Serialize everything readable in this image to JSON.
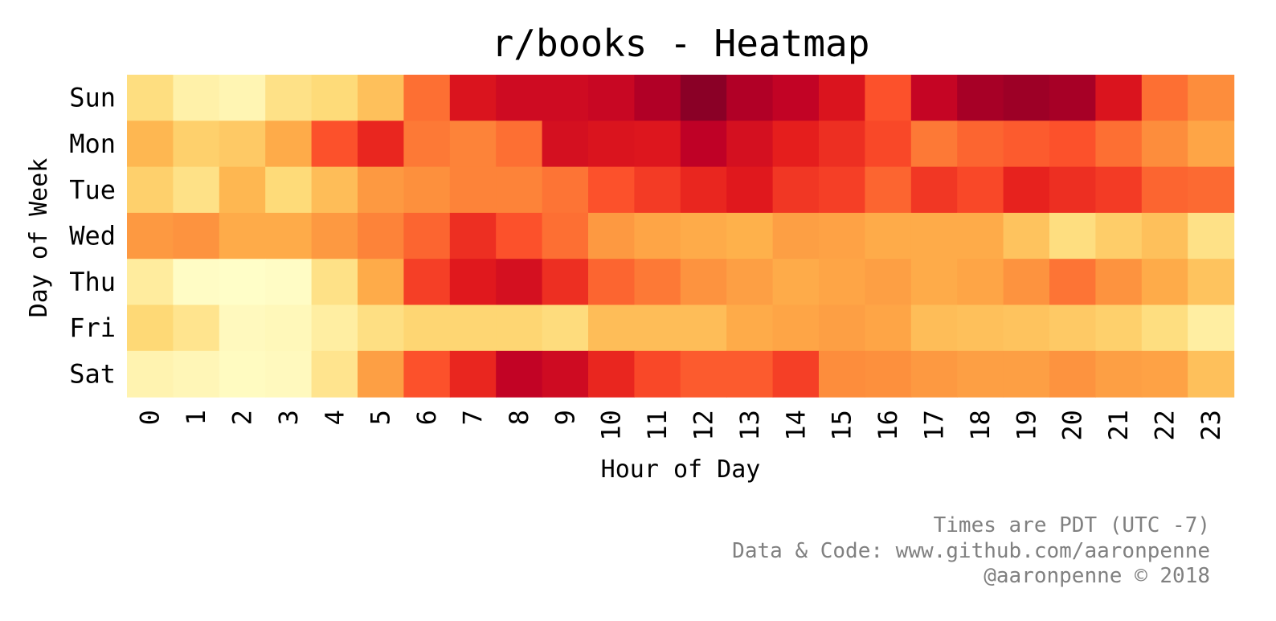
{
  "chart_data": {
    "type": "heatmap",
    "title": "r/books - Heatmap",
    "xlabel": "Hour of Day",
    "ylabel": "Day of Week",
    "x_categories": [
      "0",
      "1",
      "2",
      "3",
      "4",
      "5",
      "6",
      "7",
      "8",
      "9",
      "10",
      "11",
      "12",
      "13",
      "14",
      "15",
      "16",
      "17",
      "18",
      "19",
      "20",
      "21",
      "22",
      "23"
    ],
    "y_categories": [
      "Sun",
      "Mon",
      "Tue",
      "Wed",
      "Thu",
      "Fri",
      "Sat"
    ],
    "colormap": "YlOrRd",
    "value_range": [
      0,
      1
    ],
    "values": [
      [
        0.22,
        0.1,
        0.07,
        0.2,
        0.24,
        0.33,
        0.56,
        0.78,
        0.82,
        0.82,
        0.84,
        0.9,
        0.98,
        0.9,
        0.86,
        0.78,
        0.62,
        0.85,
        0.92,
        0.94,
        0.92,
        0.78,
        0.56,
        0.5
      ],
      [
        0.36,
        0.28,
        0.3,
        0.4,
        0.62,
        0.72,
        0.54,
        0.52,
        0.56,
        0.8,
        0.78,
        0.77,
        0.87,
        0.8,
        0.74,
        0.7,
        0.64,
        0.54,
        0.58,
        0.6,
        0.62,
        0.56,
        0.5,
        0.42
      ],
      [
        0.28,
        0.2,
        0.36,
        0.24,
        0.34,
        0.46,
        0.49,
        0.52,
        0.52,
        0.55,
        0.62,
        0.67,
        0.72,
        0.76,
        0.68,
        0.66,
        0.58,
        0.68,
        0.64,
        0.73,
        0.7,
        0.67,
        0.58,
        0.57
      ],
      [
        0.46,
        0.48,
        0.4,
        0.4,
        0.46,
        0.52,
        0.58,
        0.7,
        0.62,
        0.56,
        0.46,
        0.42,
        0.4,
        0.38,
        0.44,
        0.43,
        0.4,
        0.4,
        0.4,
        0.32,
        0.22,
        0.29,
        0.33,
        0.2
      ],
      [
        0.13,
        0.02,
        0.01,
        0.02,
        0.2,
        0.4,
        0.66,
        0.76,
        0.8,
        0.7,
        0.58,
        0.54,
        0.48,
        0.44,
        0.4,
        0.42,
        0.44,
        0.4,
        0.42,
        0.48,
        0.55,
        0.48,
        0.4,
        0.32
      ],
      [
        0.25,
        0.18,
        0.04,
        0.05,
        0.12,
        0.21,
        0.26,
        0.26,
        0.26,
        0.23,
        0.34,
        0.34,
        0.34,
        0.4,
        0.42,
        0.44,
        0.42,
        0.34,
        0.33,
        0.32,
        0.3,
        0.28,
        0.22,
        0.12
      ],
      [
        0.08,
        0.06,
        0.03,
        0.04,
        0.18,
        0.44,
        0.62,
        0.72,
        0.86,
        0.82,
        0.72,
        0.64,
        0.6,
        0.6,
        0.66,
        0.5,
        0.49,
        0.46,
        0.44,
        0.44,
        0.48,
        0.44,
        0.43,
        0.33
      ]
    ],
    "grid": false,
    "legend": "none"
  },
  "footnote": {
    "line1": "Times are PDT (UTC -7)",
    "line2": "Data & Code: www.github.com/aaronpenne",
    "line3": "@aaronpenne © 2018"
  }
}
